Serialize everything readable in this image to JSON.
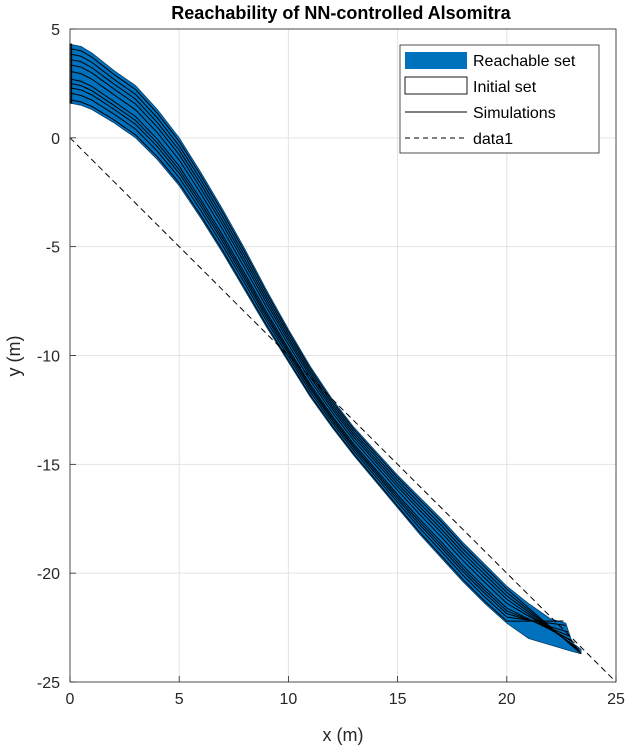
{
  "chart_data": {
    "type": "area",
    "title": "Reachability of NN-controlled Alsomitra",
    "xlabel": "x (m)",
    "ylabel": "y (m)",
    "xlim": [
      0,
      25
    ],
    "ylim": [
      -25,
      5
    ],
    "xticks": [
      0,
      5,
      10,
      15,
      20,
      25
    ],
    "yticks": [
      -25,
      -20,
      -15,
      -10,
      -5,
      0,
      5
    ],
    "xtick_labels": [
      "0",
      "5",
      "10",
      "15",
      "20",
      "25"
    ],
    "ytick_labels": [
      "-25",
      "-20",
      "-15",
      "-10",
      "-5",
      "0",
      "5"
    ],
    "grid": true,
    "legend_position": "top-right",
    "series": [
      {
        "name": "Reachable set",
        "kind": "filled-region",
        "color": "#0072BD",
        "upper": [
          [
            0,
            4.3
          ],
          [
            0.5,
            4.2
          ],
          [
            1,
            3.9
          ],
          [
            2,
            3.1
          ],
          [
            3,
            2.4
          ],
          [
            4,
            1.3
          ],
          [
            5,
            0.0
          ],
          [
            6,
            -1.6
          ],
          [
            7,
            -3.3
          ],
          [
            8,
            -5.1
          ],
          [
            9,
            -7.0
          ],
          [
            10,
            -8.8
          ],
          [
            11,
            -10.5
          ],
          [
            12,
            -12.0
          ],
          [
            13,
            -13.3
          ],
          [
            14,
            -14.4
          ],
          [
            15,
            -15.5
          ],
          [
            16,
            -16.5
          ],
          [
            17,
            -17.5
          ],
          [
            18,
            -18.6
          ],
          [
            19,
            -19.6
          ],
          [
            20,
            -20.6
          ],
          [
            21,
            -21.4
          ],
          [
            22,
            -22.1
          ],
          [
            22.7,
            -22.3
          ],
          [
            23,
            -23.2
          ],
          [
            23.4,
            -23.5
          ]
        ],
        "lower": [
          [
            0,
            1.6
          ],
          [
            0.5,
            1.5
          ],
          [
            1,
            1.3
          ],
          [
            2,
            0.7
          ],
          [
            3,
            0.0
          ],
          [
            4,
            -1.0
          ],
          [
            5,
            -2.2
          ],
          [
            6,
            -3.7
          ],
          [
            7,
            -5.3
          ],
          [
            8,
            -7.0
          ],
          [
            9,
            -8.7
          ],
          [
            10,
            -10.3
          ],
          [
            11,
            -11.9
          ],
          [
            12,
            -13.3
          ],
          [
            13,
            -14.6
          ],
          [
            14,
            -15.8
          ],
          [
            15,
            -17.0
          ],
          [
            16,
            -18.2
          ],
          [
            17,
            -19.3
          ],
          [
            18,
            -20.4
          ],
          [
            19,
            -21.4
          ],
          [
            20,
            -22.3
          ],
          [
            21,
            -23.0
          ],
          [
            22,
            -23.3
          ],
          [
            23,
            -23.6
          ],
          [
            23.4,
            -23.7
          ]
        ]
      },
      {
        "name": "Initial set",
        "kind": "box",
        "color": "#000000",
        "x": [
          0,
          0.05
        ],
        "y": [
          1.6,
          4.3
        ]
      },
      {
        "name": "Simulations",
        "kind": "lines",
        "color": "#000000",
        "start_y": [
          1.75,
          2.05,
          2.3,
          2.5,
          2.7,
          3.05,
          3.35,
          3.6,
          3.85,
          4.1
        ],
        "ends": [
          [
            22.6,
            -22.2
          ],
          [
            22.7,
            -22.4
          ],
          [
            22.8,
            -22.7
          ],
          [
            22.9,
            -22.9
          ],
          [
            23.0,
            -23.1
          ],
          [
            23.1,
            -23.2
          ],
          [
            23.2,
            -23.4
          ],
          [
            23.3,
            -23.5
          ],
          [
            23.35,
            -23.6
          ],
          [
            23.4,
            -23.7
          ]
        ]
      },
      {
        "name": "data1",
        "kind": "dashed-line",
        "color": "#000000",
        "points": [
          [
            0,
            0
          ],
          [
            25,
            -25
          ]
        ]
      }
    ]
  }
}
